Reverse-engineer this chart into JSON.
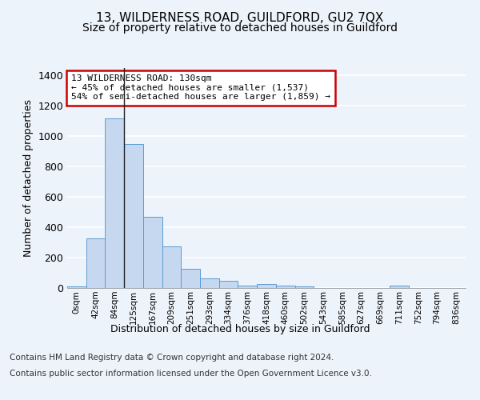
{
  "title": "13, WILDERNESS ROAD, GUILDFORD, GU2 7QX",
  "subtitle": "Size of property relative to detached houses in Guildford",
  "xlabel": "Distribution of detached houses by size in Guildford",
  "ylabel": "Number of detached properties",
  "footer_line1": "Contains HM Land Registry data © Crown copyright and database right 2024.",
  "footer_line2": "Contains public sector information licensed under the Open Government Licence v3.0.",
  "categories": [
    "0sqm",
    "42sqm",
    "84sqm",
    "125sqm",
    "167sqm",
    "209sqm",
    "251sqm",
    "293sqm",
    "334sqm",
    "376sqm",
    "418sqm",
    "460sqm",
    "502sqm",
    "543sqm",
    "585sqm",
    "627sqm",
    "669sqm",
    "711sqm",
    "752sqm",
    "794sqm",
    "836sqm"
  ],
  "values": [
    8,
    325,
    1120,
    950,
    468,
    275,
    128,
    63,
    46,
    18,
    25,
    18,
    10,
    2,
    2,
    2,
    0,
    14,
    0,
    0,
    0
  ],
  "bar_color": "#c5d8f0",
  "bar_edge_color": "#5b9bd5",
  "highlight_bar_index": 3,
  "highlight_line_color": "#222222",
  "annotation_text": "13 WILDERNESS ROAD: 130sqm\n← 45% of detached houses are smaller (1,537)\n54% of semi-detached houses are larger (1,859) →",
  "annotation_box_color": "#ffffff",
  "annotation_border_color": "#cc0000",
  "ylim": [
    0,
    1450
  ],
  "background_color": "#edf3fb",
  "plot_bg_color": "#edf3fb",
  "grid_color": "#ffffff",
  "title_fontsize": 11,
  "subtitle_fontsize": 10,
  "label_fontsize": 9,
  "tick_fontsize": 7.5,
  "footer_fontsize": 7.5
}
